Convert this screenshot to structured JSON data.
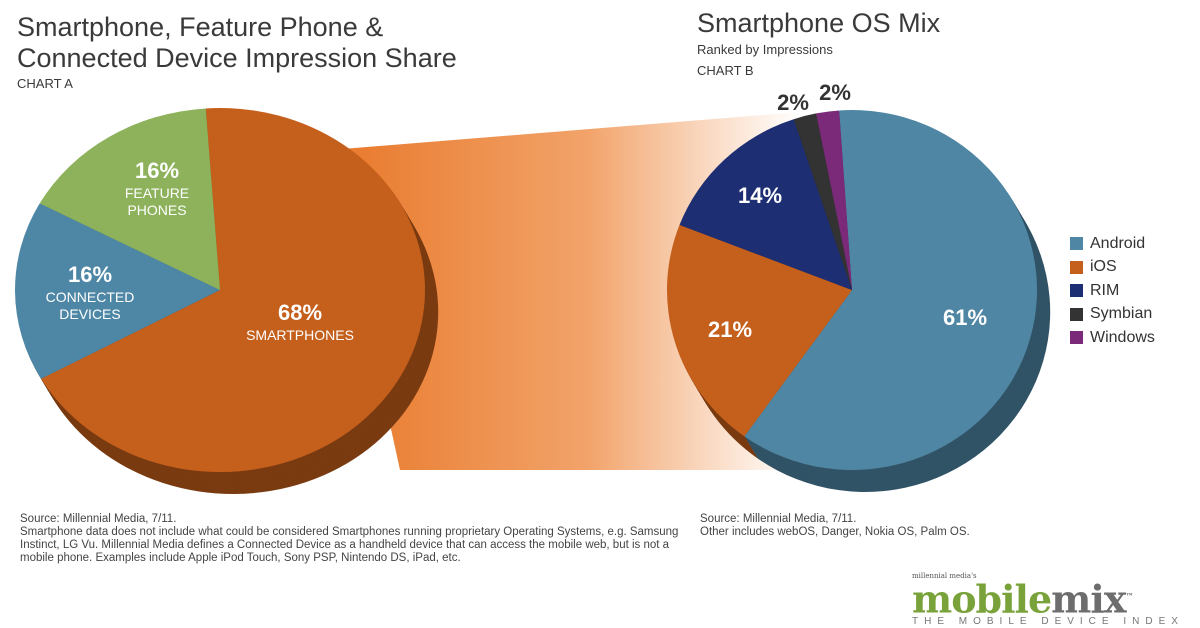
{
  "chart_data": [
    {
      "type": "pie",
      "title": "Smartphone, Feature Phone & Connected Device Impression Share",
      "subtitle": "CHART A",
      "slices": [
        {
          "label": "SMARTPHONES",
          "value": 68,
          "display": "68%",
          "color": "#c45f1c"
        },
        {
          "label": "CONNECTED DEVICES",
          "value": 16,
          "display": "16%",
          "color": "#4e87a6"
        },
        {
          "label": "FEATURE PHONES",
          "value": 16,
          "display": "16%",
          "color": "#8db25b"
        }
      ],
      "notes": [
        "Source: Millennial Media, 7/11.",
        "Smartphone data does not include what could be considered Smartphones running proprietary Operating Systems, e.g. Samsung Instinct, LG Vu. Millennial Media defines a Connected Device as a handheld device that can access the mobile web, but is not a mobile phone. Examples include Apple iPod Touch, Sony PSP, Nintendo DS, iPad, etc."
      ]
    },
    {
      "type": "pie",
      "title": "Smartphone OS Mix",
      "subtitle": "Ranked by Impressions",
      "chart_label": "CHART B",
      "slices": [
        {
          "label": "Android",
          "value": 61,
          "display": "61%",
          "color": "#4f86a4"
        },
        {
          "label": "iOS",
          "value": 21,
          "display": "21%",
          "color": "#c45f1c"
        },
        {
          "label": "RIM",
          "value": 14,
          "display": "14%",
          "color": "#1d2e72"
        },
        {
          "label": "Symbian",
          "value": 2,
          "display": "2%",
          "color": "#333333"
        },
        {
          "label": "Windows",
          "value": 2,
          "display": "2%",
          "color": "#7a2a78"
        }
      ],
      "legend_position": "right",
      "notes": [
        "Source: Millennial Media, 7/11.",
        "Other includes webOS, Danger, Nokia OS, Palm OS."
      ]
    }
  ],
  "logo": {
    "small": "millennial media's",
    "mobile": "mobile",
    "mix": "mix",
    "tm": "™",
    "tagline": "THE MOBILE DEVICE INDEX",
    "green": "#7aa23a",
    "gray": "#6d6d6d"
  }
}
